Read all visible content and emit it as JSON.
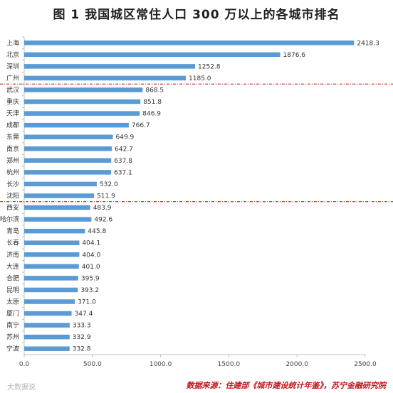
{
  "title": "图 1    我国城区常住人口 300 万以上的各城市排名",
  "watermark": "大数据说",
  "source": "数据来源：住建部《城市建设统计年鉴》，苏宁金融研究院",
  "colors": {
    "bar": "#5b9bd5",
    "divider": "#c00000",
    "axis": "#bfbfbf"
  },
  "chart_data": {
    "type": "bar",
    "orientation": "horizontal",
    "categories": [
      "上海",
      "北京",
      "深圳",
      "广州",
      "武汉",
      "重庆",
      "天津",
      "成都",
      "东莞",
      "南京",
      "郑州",
      "杭州",
      "长沙",
      "沈阳",
      "西安",
      "哈尔滨",
      "青岛",
      "长春",
      "济南",
      "大连",
      "合肥",
      "昆明",
      "太原",
      "厦门",
      "南宁",
      "苏州",
      "宁波"
    ],
    "values": [
      2418.3,
      1876.6,
      1252.8,
      1185.0,
      868.5,
      851.8,
      846.9,
      766.7,
      649.9,
      642.7,
      637.8,
      637.1,
      532.0,
      511.9,
      483.9,
      492.6,
      445.8,
      404.1,
      404.0,
      401.0,
      395.9,
      393.2,
      371.0,
      347.4,
      333.3,
      332.9,
      332.8
    ],
    "value_labels": [
      "2418.3",
      "1876.6",
      "1252.8",
      "1185.0",
      "868.5",
      "851.8",
      "846.9",
      "766.7",
      "649.9",
      "642.7",
      "637.8",
      "637.1",
      "532.0",
      "511.9",
      "483.9",
      "492.6",
      "445.8",
      "404.1",
      "404.0",
      "401.0",
      "395.9",
      "393.2",
      "371.0",
      "347.4",
      "333.3",
      "332.9",
      "332.8"
    ],
    "xticks": [
      "0.0",
      "500.0",
      "1000.0",
      "1500.0",
      "2000.0",
      "2500.0"
    ],
    "xlim": [
      0,
      2500
    ],
    "dividers_after": [
      "广州",
      "沈阳"
    ],
    "grid": false,
    "legend": "none"
  }
}
